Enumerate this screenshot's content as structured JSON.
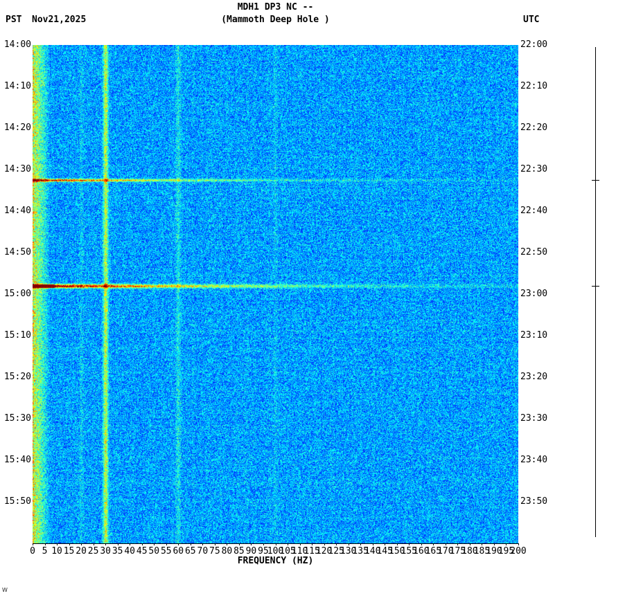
{
  "header": {
    "title": "MDH1 DP3 NC --",
    "subtitle": "(Mammoth Deep Hole )",
    "tz_left": "PST",
    "date": "Nov21,2025",
    "tz_right": "UTC"
  },
  "footer": {
    "watermark": "W"
  },
  "chart_data": {
    "type": "heatmap",
    "title": "MDH1 DP3 NC -- (Mammoth Deep Hole ) spectrogram",
    "xlabel": "FREQUENCY (HZ)",
    "x_range_hz": [
      0,
      200
    ],
    "x_ticks_hz": [
      0,
      5,
      10,
      15,
      20,
      25,
      30,
      35,
      40,
      45,
      50,
      55,
      60,
      65,
      70,
      75,
      80,
      85,
      90,
      95,
      100,
      105,
      110,
      115,
      120,
      125,
      130,
      135,
      140,
      145,
      150,
      155,
      160,
      165,
      170,
      175,
      180,
      185,
      190,
      195,
      200
    ],
    "y_left_ticks": [
      "14:00",
      "14:10",
      "14:20",
      "14:30",
      "14:40",
      "14:50",
      "15:00",
      "15:10",
      "15:20",
      "15:30",
      "15:40",
      "15:50"
    ],
    "y_right_ticks": [
      "22:00",
      "22:10",
      "22:20",
      "22:30",
      "22:40",
      "22:50",
      "23:00",
      "23:10",
      "23:20",
      "23:30",
      "23:40",
      "23:50"
    ],
    "minutes_per_tick": 10,
    "span_minutes": 120,
    "colormap": "jet",
    "noise": {
      "base": 0.15,
      "spread": 0.27,
      "seed": 20251121
    },
    "low_freq_edge": {
      "cutoff_hz": 7,
      "strength": 0.42
    },
    "persistent_bands_hz": [
      {
        "hz": 30,
        "strength": 0.32,
        "width_hz": 0.7
      },
      {
        "hz": 60,
        "strength": 0.1,
        "width_hz": 0.6
      },
      {
        "hz": 20,
        "strength": 0.05,
        "width_hz": 0.5
      },
      {
        "hz": 100,
        "strength": 0.04,
        "width_hz": 0.5
      }
    ],
    "events": [
      {
        "label": "event-22:32-utc",
        "minutes_from_start": 32.5,
        "peak_value": 0.78,
        "decay_hz": 60,
        "sigma_min": 0.22
      },
      {
        "label": "event-23:00-utc",
        "minutes_from_start": 58.0,
        "peak_value": 0.95,
        "decay_hz": 70,
        "sigma_min": 0.3,
        "core_hz": 9
      }
    ]
  },
  "scalebar": {
    "present": true
  }
}
